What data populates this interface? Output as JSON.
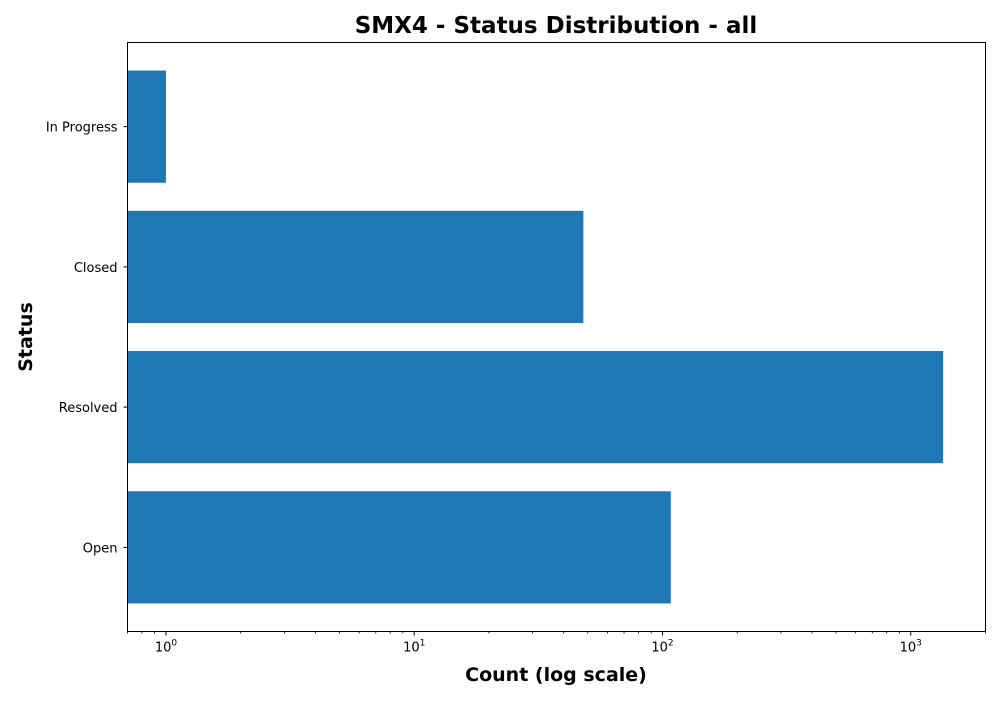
{
  "chart_data": {
    "type": "bar",
    "orientation": "horizontal",
    "title": "SMX4 - Status Distribution - all",
    "xlabel": "Count (log scale)",
    "ylabel": "Status",
    "x_scale": "log",
    "xlim": [
      0.7,
      2000
    ],
    "categories": [
      "Open",
      "Resolved",
      "Closed",
      "In Progress"
    ],
    "values": [
      108,
      1350,
      48,
      1
    ],
    "x_ticks": [
      {
        "base": "10",
        "exp": "0",
        "value": 1
      },
      {
        "base": "10",
        "exp": "1",
        "value": 10
      },
      {
        "base": "10",
        "exp": "2",
        "value": 100
      },
      {
        "base": "10",
        "exp": "3",
        "value": 1000
      }
    ],
    "bar_color": "#1f77b4",
    "grid": false,
    "legend": "none"
  }
}
